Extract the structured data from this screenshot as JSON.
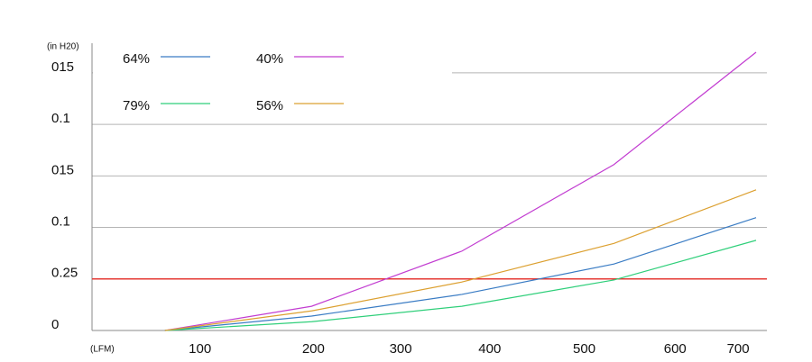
{
  "chart_data": {
    "type": "line",
    "y_label": "(in H20)",
    "x_label": "(LFM)",
    "x": [
      81,
      244,
      411,
      580,
      738
    ],
    "xlim": [
      0,
      750
    ],
    "xticks": [
      {
        "value": 120,
        "label": "100"
      },
      {
        "value": 246,
        "label": "200"
      },
      {
        "value": 343,
        "label": "300"
      },
      {
        "value": 442,
        "label": "400"
      },
      {
        "value": 547,
        "label": "500"
      },
      {
        "value": 648,
        "label": "600"
      },
      {
        "value": 718,
        "label": "700"
      }
    ],
    "ylim": [
      0,
      5.4
    ],
    "yticks": [
      0,
      {
        "value": 1,
        "label": "0.25"
      },
      {
        "value": 2,
        "label": "0.1"
      },
      {
        "value": 3,
        "label": "015"
      },
      {
        "value": 4,
        "label": "0.1"
      },
      {
        "value": 5,
        "label": "015"
      }
    ],
    "grid": true,
    "reference_line": {
      "value": 1,
      "color": "#e53935"
    },
    "series": [
      {
        "name": "64%",
        "color": "#3a7cc4",
        "values": [
          0,
          0.28,
          0.7,
          1.29,
          2.19
        ]
      },
      {
        "name": "40%",
        "color": "#c23dd1",
        "values": [
          0,
          0.47,
          1.54,
          3.22,
          5.4
        ]
      },
      {
        "name": "79%",
        "color": "#2fcf7a",
        "values": [
          0,
          0.17,
          0.47,
          0.98,
          1.75
        ]
      },
      {
        "name": "56%",
        "color": "#dca030",
        "values": [
          0,
          0.38,
          0.94,
          1.69,
          2.73
        ]
      }
    ]
  }
}
